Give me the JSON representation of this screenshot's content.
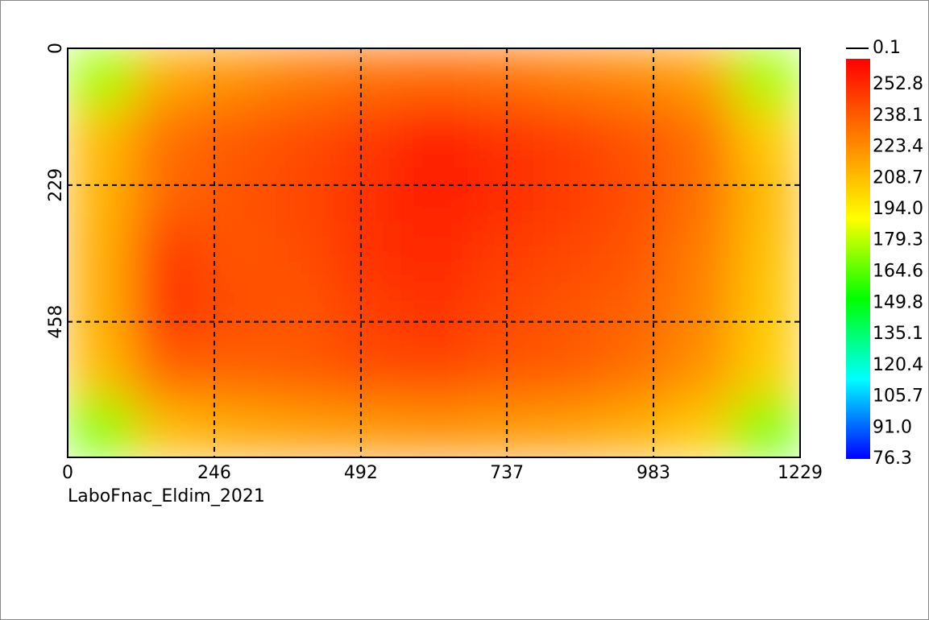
{
  "chart_data": {
    "type": "heatmap",
    "caption": "LaboFnac_Eldim_2021",
    "xlim": [
      0,
      1229
    ],
    "xticks": [
      0,
      246,
      492,
      737,
      983,
      1229
    ],
    "ylim": [
      0,
      685
    ],
    "yticks": [
      0,
      229,
      458
    ],
    "y_inverted": true,
    "grid": true,
    "colormap": [
      "#0000ff",
      "#00ffff",
      "#00ff00",
      "#ffff00",
      "#ff8000",
      "#ff0000"
    ],
    "clim": [
      76.3,
      265
    ],
    "cbar_ticks": [
      252.8,
      238.1,
      223.4,
      208.7,
      {
        "value": 194.0,
        "label": "194.0"
      },
      179.3,
      164.6,
      149.8,
      135.1,
      120.4,
      105.7,
      {
        "value": 91.0,
        "label": "91.0"
      },
      76.3
    ],
    "under_value": 0.1,
    "z": [
      [
        175,
        215,
        222,
        228,
        232,
        234,
        232,
        228,
        225,
        218,
        175
      ],
      [
        210,
        232,
        238,
        242,
        248,
        256,
        250,
        246,
        240,
        232,
        205
      ],
      [
        212,
        235,
        240,
        244,
        250,
        256,
        252,
        248,
        242,
        232,
        210
      ],
      [
        214,
        248,
        240,
        242,
        250,
        254,
        248,
        244,
        240,
        228,
        208
      ],
      [
        214,
        250,
        242,
        240,
        246,
        250,
        244,
        240,
        236,
        226,
        206
      ],
      [
        210,
        236,
        236,
        238,
        242,
        244,
        240,
        238,
        232,
        222,
        204
      ],
      [
        170,
        210,
        215,
        218,
        220,
        222,
        220,
        218,
        214,
        206,
        168
      ]
    ]
  }
}
